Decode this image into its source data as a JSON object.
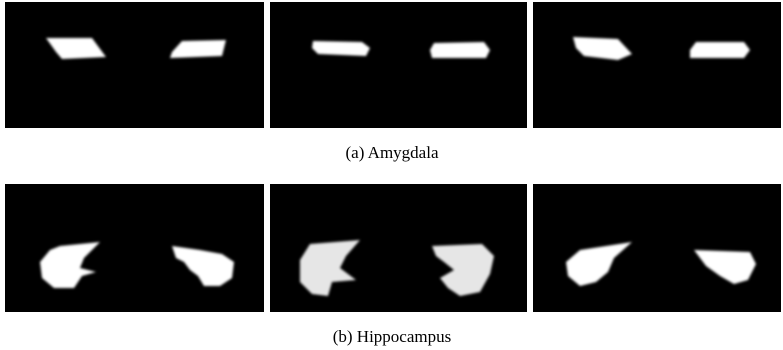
{
  "subfigures": [
    {
      "caption": "(a)  Amygdala"
    },
    {
      "caption": "(b)  Hippocampus"
    }
  ]
}
